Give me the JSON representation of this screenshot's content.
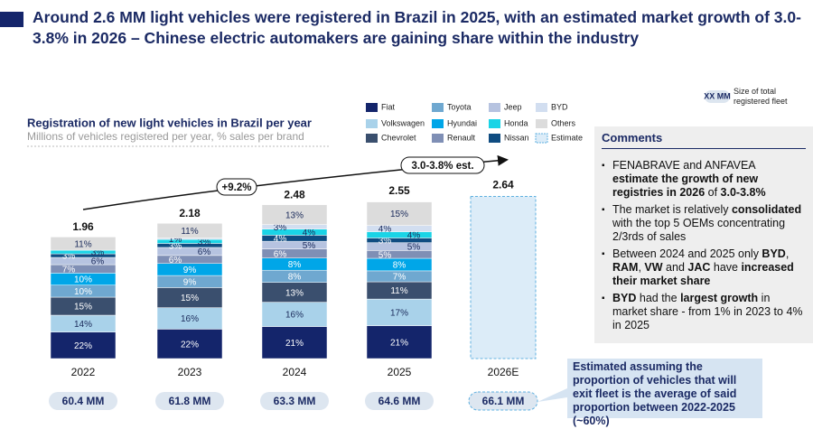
{
  "header": {
    "title": "Around 2.6 MM light vehicles were registered in Brazil in 2025, with an estimated market growth of 3.0-3.8% in 2026 – Chinese electric automakers are gaining share within the industry"
  },
  "chart_data": {
    "type": "bar",
    "stacked": true,
    "title": "Registration of new light vehicles in Brazil per year",
    "subtitle": "Millions of vehicles registered per year, % sales per brand",
    "categories": [
      "2022",
      "2023",
      "2024",
      "2025",
      "2026E"
    ],
    "estimate": [
      false,
      false,
      false,
      false,
      true
    ],
    "estimate_label": "Estimate",
    "totals": {
      "values": [
        1.96,
        2.18,
        2.48,
        2.55,
        2.64
      ]
    },
    "series": [
      {
        "name": "Fiat",
        "color": "#14256b",
        "text_color": "#ffffff",
        "values": [
          22,
          22,
          21,
          21,
          null
        ],
        "value_labels": [
          "22%",
          "22%",
          "21%",
          "21%",
          null
        ]
      },
      {
        "name": "Volkswagen",
        "color": "#a9d2ea",
        "text_color": "#1a2a5a",
        "values": [
          14,
          16,
          16,
          17,
          null
        ],
        "value_labels": [
          "14%",
          "16%",
          "16%",
          "17%",
          null
        ]
      },
      {
        "name": "Chevrolet",
        "color": "#3a4f6e",
        "text_color": "#ffffff",
        "values": [
          15,
          15,
          13,
          11,
          null
        ],
        "value_labels": [
          "15%",
          "15%",
          "13%",
          "11%",
          null
        ]
      },
      {
        "name": "Toyota",
        "color": "#6fa8d0",
        "text_color": "#ffffff",
        "values": [
          10,
          9,
          8,
          7,
          null
        ],
        "value_labels": [
          "10%",
          "9%",
          "8%",
          "7%",
          null
        ]
      },
      {
        "name": "Hyundai",
        "color": "#00a6e8",
        "text_color": "#ffffff",
        "values": [
          10,
          9,
          8,
          8,
          null
        ],
        "value_labels": [
          "10%",
          "9%",
          "8%",
          "8%",
          null
        ]
      },
      {
        "name": "Renault",
        "color": "#7f8fb5",
        "text_color": "#ffffff",
        "values": [
          7,
          6,
          6,
          5,
          null
        ],
        "value_labels": [
          "7%",
          "6%",
          "6%",
          "5%",
          null
        ]
      },
      {
        "name": "Jeep",
        "color": "#b6c3e0",
        "text_color": "#1a2a5a",
        "values": [
          6,
          6,
          5,
          5,
          null
        ],
        "value_labels": [
          "6%",
          "6%",
          "5%",
          "5%",
          null
        ]
      },
      {
        "name": "Nissan",
        "color": "#0f4c81",
        "text_color": "#ffffff",
        "values": [
          3,
          3,
          4,
          3,
          null
        ],
        "value_labels": [
          "3%",
          "3%",
          "4%",
          "3%",
          null
        ]
      },
      {
        "name": "Honda",
        "color": "#1ad4e6",
        "text_color": "#1a2a5a",
        "values": [
          3,
          3,
          4,
          4,
          null
        ],
        "value_labels": [
          "3%",
          "3%",
          "4%",
          "4%",
          null
        ]
      },
      {
        "name": "BYD",
        "color": "#d2def0",
        "text_color": "#1a2a5a",
        "values": [
          null,
          1,
          3,
          4,
          null
        ],
        "value_labels": [
          null,
          "1%",
          "3%",
          "4%",
          null
        ]
      },
      {
        "name": "Others",
        "color": "#dcdcdc",
        "text_color": "#1a2a5a",
        "values": [
          11,
          11,
          13,
          15,
          null
        ],
        "value_labels": [
          "11%",
          "11%",
          "13%",
          "15%",
          null
        ]
      }
    ],
    "fleet": {
      "values": [
        60.4,
        61.8,
        63.3,
        64.6,
        66.1
      ],
      "value_labels": [
        "60.4 MM",
        "61.8 MM",
        "63.3 MM",
        "64.6 MM",
        "66.1 MM"
      ]
    },
    "fleet_legend": {
      "sample": "XX MM",
      "label": "Size of total registered fleet"
    },
    "annotations": [
      "+9.2%",
      "3.0-3.8% est."
    ]
  },
  "comments": {
    "title": "Comments",
    "bullets": [
      [
        {
          "text": "FENABRAVE  and ANFAVEA ",
          "bold": false
        },
        {
          "text": "estimate the growth of new registries in 2026",
          "bold": true
        },
        {
          "text": " of ",
          "bold": false
        },
        {
          "text": "3.0-3.8%",
          "bold": true
        }
      ],
      [
        {
          "text": "The market is relatively ",
          "bold": false
        },
        {
          "text": "consolidated",
          "bold": true
        },
        {
          "text": " with the top 5 OEMs concentrating 2/3rds of sales",
          "bold": false
        }
      ],
      [
        {
          "text": "Between 2024 and 2025 only ",
          "bold": false
        },
        {
          "text": "BYD",
          "bold": true
        },
        {
          "text": ", ",
          "bold": false
        },
        {
          "text": "RAM",
          "bold": true
        },
        {
          "text": ", ",
          "bold": false
        },
        {
          "text": "VW",
          "bold": true
        },
        {
          "text": " and ",
          "bold": false
        },
        {
          "text": "JAC",
          "bold": true
        },
        {
          "text": " have ",
          "bold": false
        },
        {
          "text": "increased their market share",
          "bold": true
        }
      ],
      [
        {
          "text": "BYD",
          "bold": true
        },
        {
          "text": " had the ",
          "bold": false
        },
        {
          "text": "largest growth",
          "bold": true
        },
        {
          "text": " in market share - from 1% in 2023 to 4% in 2025",
          "bold": false
        }
      ]
    ]
  },
  "callout": {
    "text": "Estimated assuming the proportion of vehicles that will exit fleet is the average of said proportion between 2022-2025 (~60%)"
  }
}
